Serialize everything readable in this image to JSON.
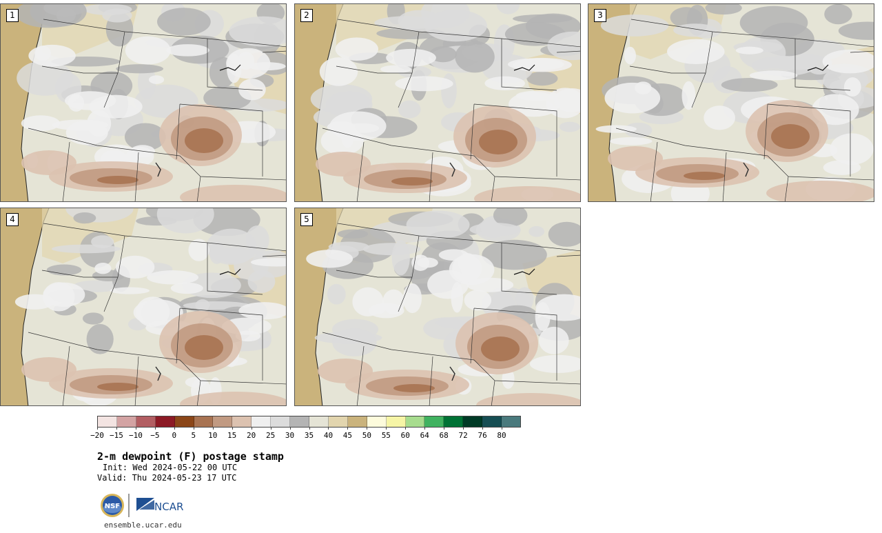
{
  "panels": [
    {
      "label": "1",
      "member": 1
    },
    {
      "label": "2",
      "member": 2
    },
    {
      "label": "3",
      "member": 3
    },
    {
      "label": "4",
      "member": 4
    },
    {
      "label": "5",
      "member": 5
    }
  ],
  "colorbar": {
    "colors": [
      "#f3e4e2",
      "#d3a3a3",
      "#b25e62",
      "#8c1a25",
      "#8b4618",
      "#a87352",
      "#c19a82",
      "#dcc2b0",
      "#efefef",
      "#dcdcdc",
      "#b4b4b4",
      "#e5e4d6",
      "#e2d5ae",
      "#cab37c",
      "#fdfbdc",
      "#f6f5a6",
      "#a7dc8e",
      "#40b260",
      "#007235",
      "#003a26",
      "#164e53",
      "#4a7a7d"
    ],
    "ticks": [
      "−20",
      "−15",
      "−10",
      "−5",
      "0",
      "5",
      "10",
      "15",
      "20",
      "25",
      "30",
      "35",
      "40",
      "45",
      "50",
      "55",
      "60",
      "64",
      "68",
      "72",
      "76",
      "80"
    ]
  },
  "title": "2-m dewpoint (F) postage stamp",
  "init": "Init: Wed 2024-05-22 00 UTC",
  "valid": "Valid: Thu 2024-05-23 17 UTC",
  "logos": {
    "nsf": "NSF",
    "ncar": "NCAR"
  },
  "website": "ensemble.ucar.edu"
}
